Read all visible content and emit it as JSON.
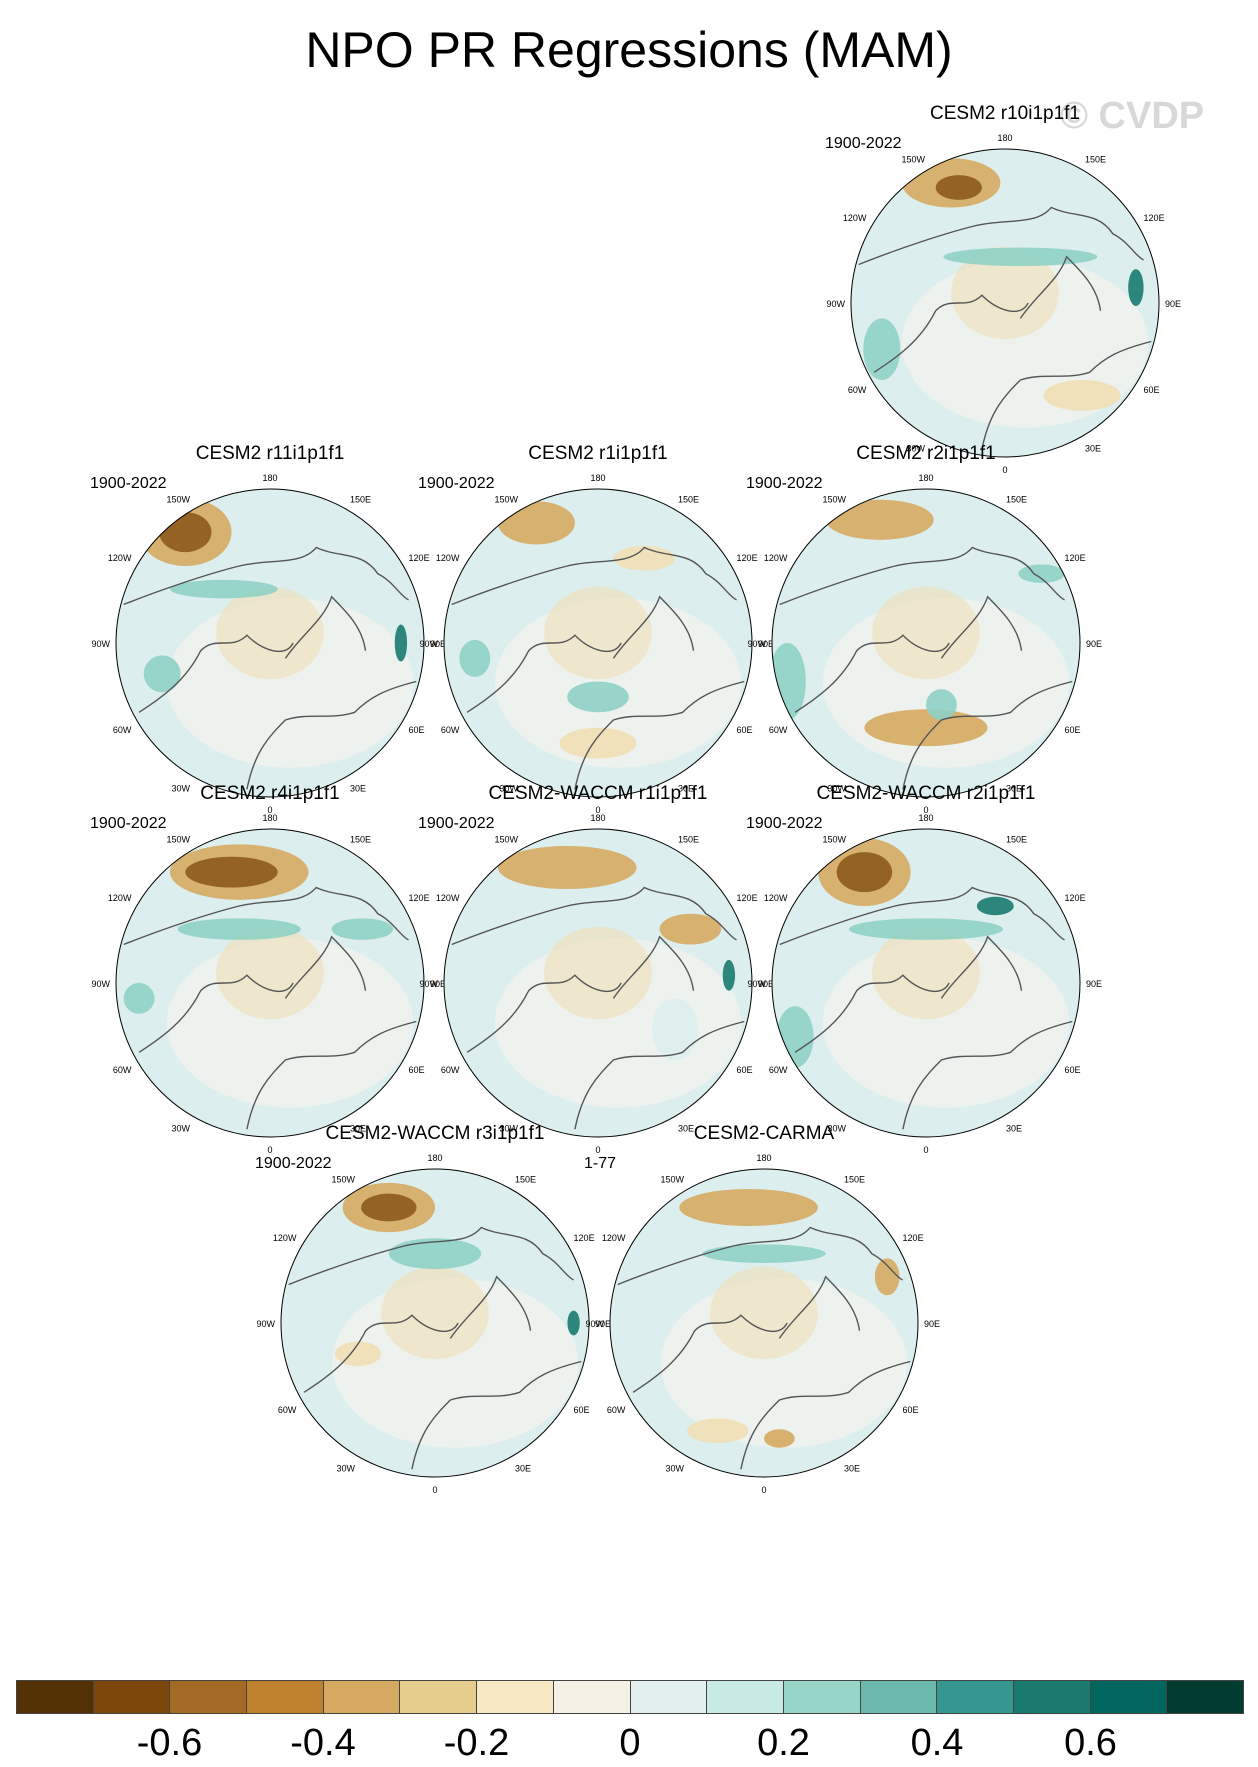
{
  "title": "NPO PR Regressions (MAM)",
  "watermark": "© CVDP",
  "longitude_labels": {
    "top": "180",
    "tl": "150W",
    "tr": "150E",
    "ul": "120W",
    "ur": "120E",
    "l": "90W",
    "r": "90E",
    "ll": "60W",
    "lr": "60E",
    "bl": "30W",
    "br": "30E",
    "bottom": "0"
  },
  "panels": [
    {
      "title": "CESM2 r10i1p1f1",
      "period": "1900-2022"
    },
    {
      "title": "CESM2 r11i1p1f1",
      "period": "1900-2022"
    },
    {
      "title": "CESM2 r1i1p1f1",
      "period": "1900-2022"
    },
    {
      "title": "CESM2 r2i1p1f1",
      "period": "1900-2022"
    },
    {
      "title": "CESM2 r4i1p1f1",
      "period": "1900-2022"
    },
    {
      "title": "CESM2-WACCM r1i1p1f1",
      "period": "1900-2022"
    },
    {
      "title": "CESM2-WACCM r2i1p1f1",
      "period": "1900-2022"
    },
    {
      "title": "CESM2-WACCM r3i1p1f1",
      "period": "1900-2022"
    },
    {
      "title": "CESM2-CARMA",
      "period": "1-77"
    }
  ],
  "colorbar": {
    "colors": [
      "#543005",
      "#7d470b",
      "#a26a25",
      "#bf812d",
      "#d5aa60",
      "#e6cd8e",
      "#f6e8c3",
      "#f5f1e6",
      "#e4efef",
      "#c7eae5",
      "#97d5c9",
      "#6cbaad",
      "#35978f",
      "#1a7a6f",
      "#01665e",
      "#003c30"
    ],
    "labels": [
      "-0.6",
      "-0.4",
      "-0.2",
      "0",
      "0.2",
      "0.4",
      "0.6"
    ]
  },
  "colors": {
    "neg_strong": "#8c5a1c",
    "neg_mid": "#d5aa60",
    "neg_weak": "#f0dfb5",
    "pos_weak": "#dceeed",
    "pos_mid": "#8fd0c5",
    "pos_strong": "#1a7a6f",
    "coast": "#555555"
  }
}
